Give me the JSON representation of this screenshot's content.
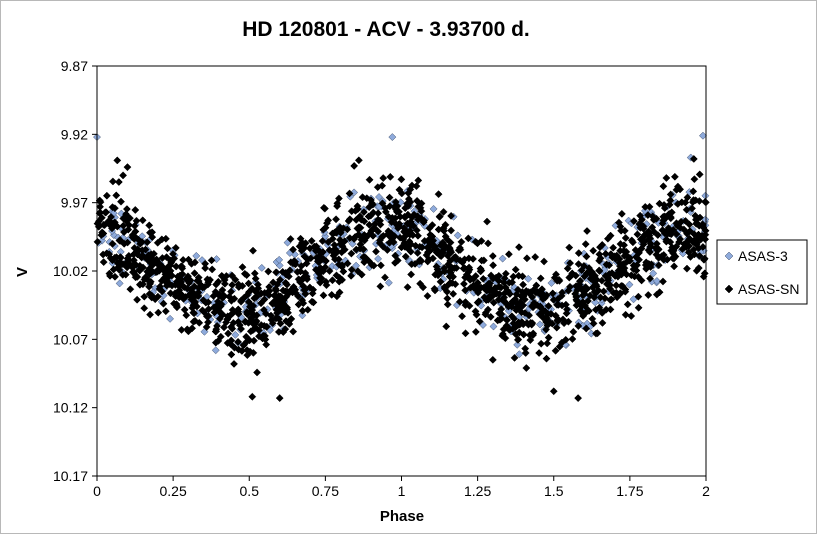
{
  "chart_data": {
    "type": "scatter",
    "title": "HD 120801 - ACV - 3.93700 d.",
    "xlabel": "Phase",
    "ylabel": "V",
    "xlim": [
      0,
      2
    ],
    "ylim": [
      9.87,
      10.17
    ],
    "y_inverted": true,
    "x_ticks": [
      "0",
      "0.25",
      "0.5",
      "0.75",
      "1",
      "1.25",
      "1.5",
      "1.75",
      "2"
    ],
    "x_tick_values": [
      0,
      0.25,
      0.5,
      0.75,
      1,
      1.25,
      1.5,
      1.75,
      2
    ],
    "y_ticks": [
      "9.87",
      "9.92",
      "9.97",
      "10.02",
      "10.07",
      "10.12",
      "10.17"
    ],
    "y_tick_values": [
      9.87,
      9.92,
      9.97,
      10.02,
      10.07,
      10.12,
      10.17
    ],
    "grid": false,
    "legend_position": "right",
    "period_days": 3.937,
    "light_curve": {
      "mean_mag": 10.018,
      "semi_amplitude": 0.031,
      "max_light_phase": 0.95,
      "scatter_sd": 0.016
    },
    "series": [
      {
        "name": "ASAS-3",
        "marker": "diamond",
        "color": "#8eaadb",
        "edge_color": "#3a4a66",
        "count": 380,
        "sample_points": [
          [
            0.0,
            9.922
          ],
          [
            0.08,
            9.978
          ],
          [
            0.16,
            9.999
          ],
          [
            0.24,
            10.055
          ],
          [
            0.33,
            10.051
          ],
          [
            0.39,
            10.078
          ],
          [
            0.47,
            10.063
          ],
          [
            0.56,
            10.048
          ],
          [
            0.64,
            10.034
          ],
          [
            0.73,
            10.006
          ],
          [
            0.81,
            9.993
          ],
          [
            0.9,
            9.967
          ],
          [
            0.97,
            9.922
          ],
          [
            1.06,
            9.979
          ],
          [
            1.18,
            10.013
          ],
          [
            1.28,
            10.031
          ],
          [
            1.38,
            10.074
          ],
          [
            1.47,
            10.064
          ],
          [
            1.55,
            10.049
          ],
          [
            1.68,
            10.035
          ],
          [
            1.82,
            9.977
          ],
          [
            1.95,
            9.937
          ],
          [
            1.99,
            9.921
          ]
        ]
      },
      {
        "name": "ASAS-SN",
        "marker": "diamond",
        "color": "#000000",
        "edge_color": "#000000",
        "count": 1500,
        "sample_points": [
          [
            0.01,
            9.973
          ],
          [
            0.1,
            9.944
          ],
          [
            0.18,
            10.038
          ],
          [
            0.27,
            10.031
          ],
          [
            0.36,
            10.061
          ],
          [
            0.45,
            10.088
          ],
          [
            0.51,
            10.112
          ],
          [
            0.6,
            10.113
          ],
          [
            0.69,
            10.026
          ],
          [
            0.78,
            10.001
          ],
          [
            0.86,
            9.939
          ],
          [
            0.94,
            9.952
          ],
          [
            1.03,
            9.984
          ],
          [
            1.13,
            10.001
          ],
          [
            1.21,
            10.045
          ],
          [
            1.3,
            10.085
          ],
          [
            1.41,
            10.091
          ],
          [
            1.5,
            10.108
          ],
          [
            1.58,
            10.113
          ],
          [
            1.66,
            10.058
          ],
          [
            1.76,
            9.999
          ],
          [
            1.86,
            9.958
          ],
          [
            1.96,
            9.938
          ]
        ]
      }
    ]
  }
}
